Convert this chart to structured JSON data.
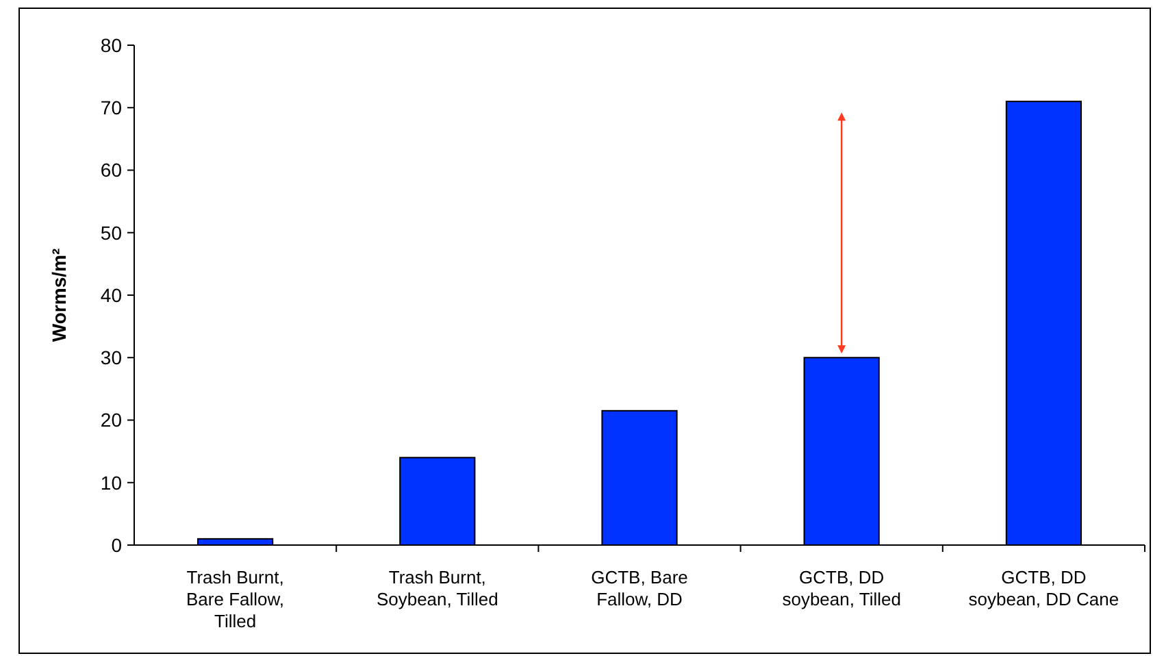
{
  "chart_data": {
    "type": "bar",
    "ylabel": "Worms/m²",
    "categories": [
      "Trash Burnt, Bare Fallow, Tilled",
      "Trash Burnt, Soybean, Tilled",
      "GCTB, Bare Fallow, DD",
      "GCTB, DD soybean, Tilled",
      "GCTB, DD soybean, DD Cane"
    ],
    "values": [
      1,
      14,
      21.5,
      30,
      71
    ],
    "color": "#0033ff",
    "ylim": [
      0,
      80
    ],
    "yticks": [
      0,
      10,
      20,
      30,
      40,
      50,
      60,
      70,
      80
    ],
    "grid": false
  }
}
